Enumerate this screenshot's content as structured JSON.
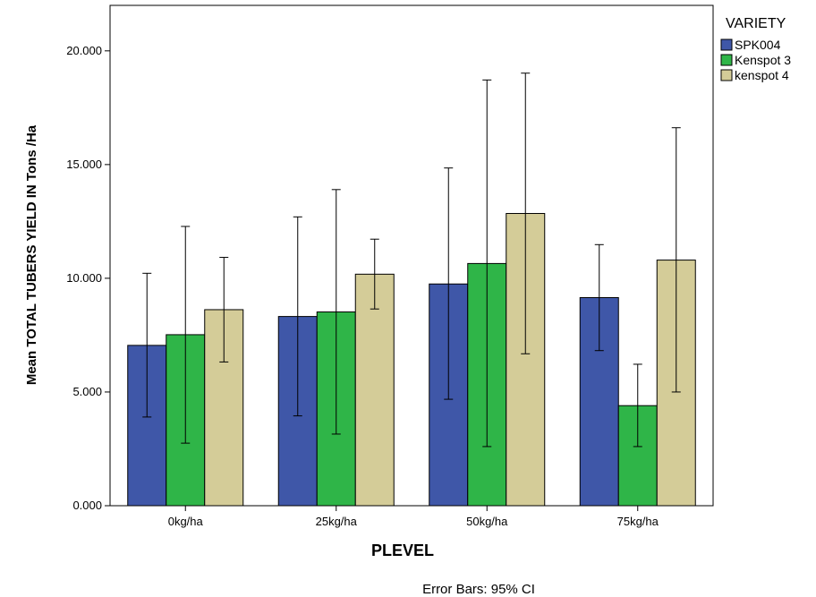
{
  "chart_data": {
    "type": "bar",
    "xlabel": "PLEVEL",
    "ylabel": "Mean TOTAL TUBERS YIELD IN Tons /Ha",
    "ylim": [
      0,
      22
    ],
    "yticks": [
      0,
      5,
      10,
      15,
      20
    ],
    "ytick_labels": [
      "0.000",
      "5.000",
      "10.000",
      "15.000",
      "20.000"
    ],
    "categories": [
      "0kg/ha",
      "25kg/ha",
      "50kg/ha",
      "75kg/ha"
    ],
    "legend_title": "VARIETY",
    "legend_position": "top-right-outside",
    "grid": false,
    "series": [
      {
        "name": "SPK004",
        "color": "#3f57a8",
        "values": [
          7.05,
          8.32,
          9.75,
          9.15
        ],
        "ci_low": [
          3.9,
          3.95,
          4.68,
          6.82
        ],
        "ci_high": [
          10.22,
          12.7,
          14.85,
          11.48
        ]
      },
      {
        "name": "Kenspot 3",
        "color": "#2fb548",
        "values": [
          7.52,
          8.52,
          10.65,
          4.4
        ],
        "ci_low": [
          2.75,
          3.15,
          2.6,
          2.6
        ],
        "ci_high": [
          12.28,
          13.9,
          18.72,
          6.22
        ]
      },
      {
        "name": "kenspot 4",
        "color": "#d4cc98",
        "values": [
          8.62,
          10.18,
          12.85,
          10.8
        ],
        "ci_low": [
          6.32,
          8.65,
          6.68,
          5.0
        ],
        "ci_high": [
          10.92,
          11.72,
          19.02,
          16.62
        ]
      }
    ],
    "footnote": "Error Bars: 95% CI"
  }
}
